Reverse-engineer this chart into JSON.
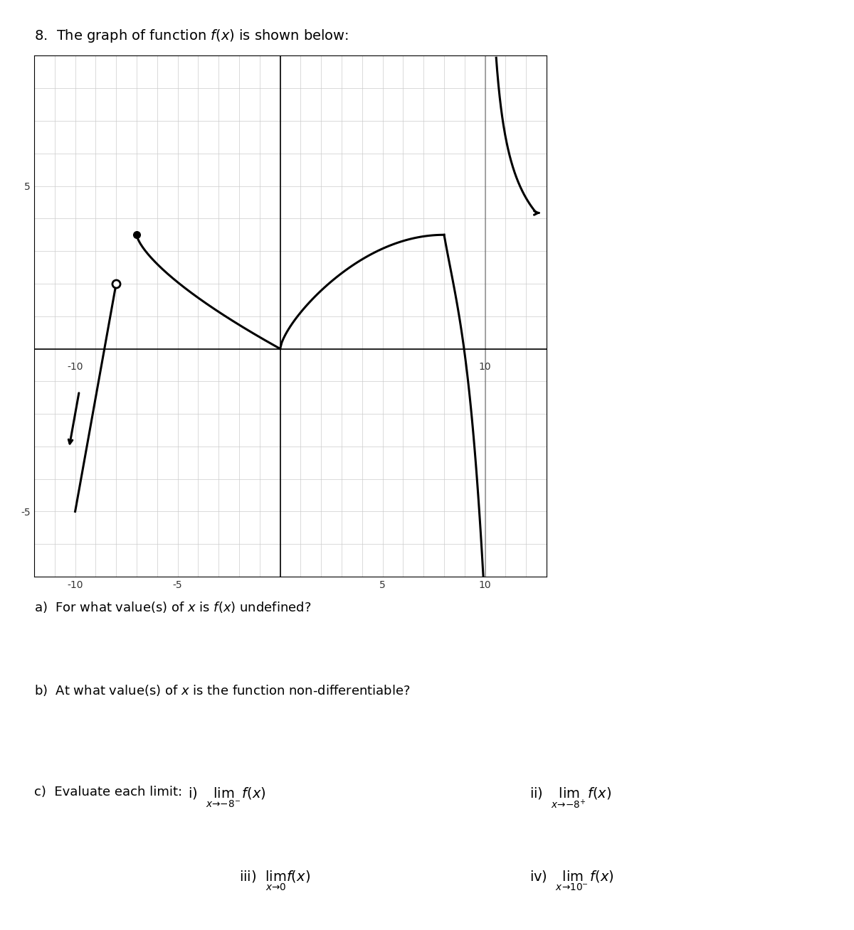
{
  "title": "8.  The graph of function $f(x)$ is shown below:",
  "xlim": [
    -12,
    13
  ],
  "ylim": [
    -7,
    9
  ],
  "xticks": [
    -10,
    -5,
    0,
    5,
    10
  ],
  "yticks": [
    -5,
    0,
    5
  ],
  "grid_color": "#cccccc",
  "axis_color": "#000000",
  "line_color": "#000000",
  "background_color": "#ffffff",
  "question_a": "a)  For what value(s) of $x$ is $f(x)$ undefined?",
  "question_b": "b)  At what value(s) of $x$ is the function non-differentiable?",
  "question_c": "c)  Evaluate each limit:",
  "limit_i": "i)  $\\lim_{x \\to -8^-} f(x)$",
  "limit_ii": "ii)  $\\lim_{x \\to -8^+} f(x)$",
  "limit_iii": "iii)  $\\lim_{x \\to 0} f(x)$",
  "limit_iv": "iv)  $\\lim_{x \\to 10^-} f(x)$"
}
